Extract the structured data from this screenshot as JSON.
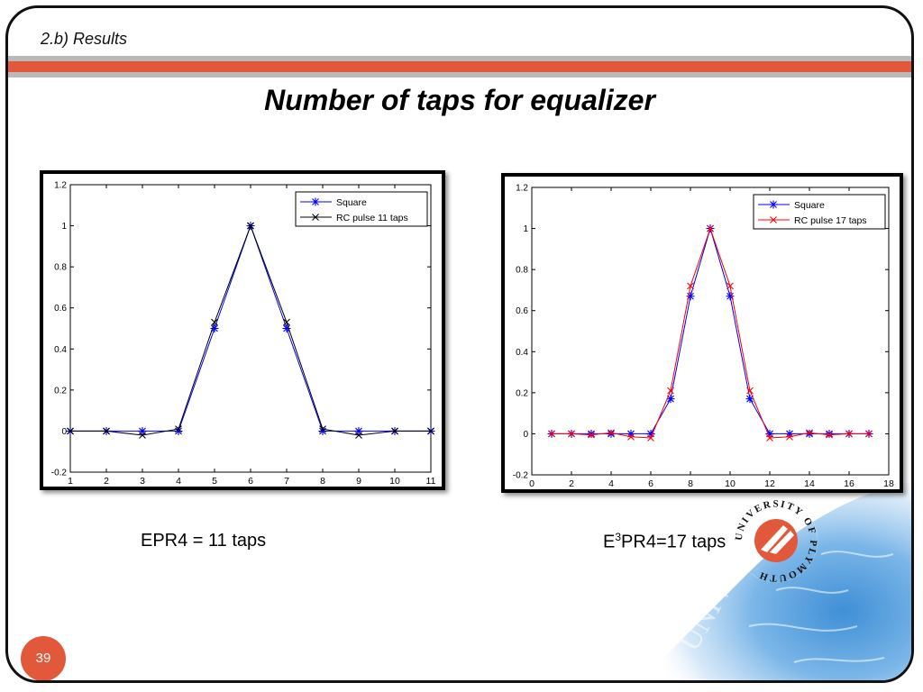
{
  "slide": {
    "section": "2.b) Results",
    "title": "Number of taps for equalizer",
    "page_number": "39",
    "captions": {
      "left": "EPR4 = 11 taps",
      "right_prefix": "E",
      "right_sup": "3",
      "right_suffix": "PR4=17 taps"
    },
    "accent_color": "#e2583a",
    "logo": {
      "text": "UNIVERSITY OF PLYMOUTH",
      "watermark": "UNIVERSITY"
    }
  },
  "chart_data": [
    {
      "type": "line",
      "title": "",
      "xlabel": "",
      "ylabel": "",
      "xlim": [
        1,
        11
      ],
      "ylim": [
        -0.2,
        1.2
      ],
      "xticks": [
        1,
        2,
        3,
        4,
        5,
        6,
        7,
        8,
        9,
        10,
        11
      ],
      "yticks": [
        -0.2,
        0,
        0.2,
        0.4,
        0.6,
        0.8,
        1,
        1.2
      ],
      "ytick_labels": [
        "-0.2",
        "0",
        "0.2",
        "0.4",
        "0.6",
        "0.8",
        "1",
        "1.2"
      ],
      "grid": false,
      "legend": "top-right",
      "series": [
        {
          "name": "Square",
          "color": "#0000ff",
          "marker": "asterisk",
          "x": [
            1,
            2,
            3,
            4,
            5,
            6,
            7,
            8,
            9,
            10,
            11
          ],
          "y": [
            0,
            0,
            0,
            0,
            0.5,
            1,
            0.5,
            0,
            0,
            0,
            0
          ]
        },
        {
          "name": "RC pulse 11 taps",
          "color": "#000000",
          "marker": "x",
          "x": [
            1,
            2,
            3,
            4,
            5,
            6,
            7,
            8,
            9,
            10,
            11
          ],
          "y": [
            0,
            0,
            -0.02,
            0.01,
            0.53,
            1,
            0.53,
            0.01,
            -0.02,
            0,
            0
          ]
        }
      ]
    },
    {
      "type": "line",
      "title": "",
      "xlabel": "",
      "ylabel": "",
      "xlim": [
        0,
        18
      ],
      "ylim": [
        -0.2,
        1.2
      ],
      "xticks": [
        0,
        2,
        4,
        6,
        8,
        10,
        12,
        14,
        16,
        18
      ],
      "yticks": [
        -0.2,
        0,
        0.2,
        0.4,
        0.6,
        0.8,
        1,
        1.2
      ],
      "ytick_labels": [
        "-0.2",
        "0",
        "0.2",
        "0.4",
        "0.6",
        "0.8",
        "1",
        "1.2"
      ],
      "grid": false,
      "legend": "top-right",
      "series": [
        {
          "name": "Square",
          "color": "#0000ff",
          "marker": "asterisk",
          "x": [
            1,
            2,
            3,
            4,
            5,
            6,
            7,
            8,
            9,
            10,
            11,
            12,
            13,
            14,
            15,
            16,
            17
          ],
          "y": [
            0,
            0,
            0,
            0,
            0,
            0,
            0.17,
            0.67,
            1,
            0.67,
            0.17,
            0,
            0,
            0,
            0,
            0,
            0
          ]
        },
        {
          "name": "RC pulse 17 taps",
          "color": "#ff0000",
          "marker": "x",
          "x": [
            1,
            2,
            3,
            4,
            5,
            6,
            7,
            8,
            9,
            10,
            11,
            12,
            13,
            14,
            15,
            16,
            17
          ],
          "y": [
            0,
            0,
            -0.005,
            0.005,
            -0.015,
            -0.02,
            0.21,
            0.72,
            1,
            0.72,
            0.21,
            -0.02,
            -0.015,
            0.005,
            -0.005,
            0,
            0
          ]
        }
      ]
    }
  ]
}
